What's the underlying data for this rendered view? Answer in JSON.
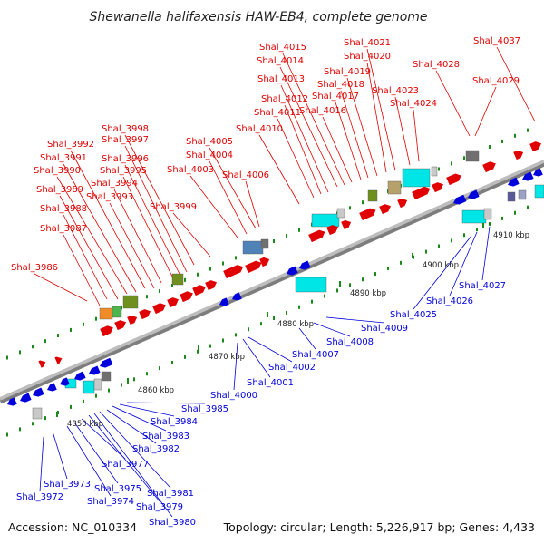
{
  "title": "Shewanella halifaxensis HAW-EB4, complete genome",
  "footer": {
    "accession": "Accession: NC_010334",
    "summary": "Topology: circular; Length: 5,226,917 bp; Genes: 4,433"
  },
  "colors": {
    "forward_gene": "#e00000",
    "reverse_gene": "#0000dd",
    "backbone": "#a0a0a0",
    "tick": "#1a8a1a",
    "cog_cyan": "#00e5e5",
    "cog_steel": "#4f83b8",
    "cog_olive": "#6f8f1f",
    "cog_gray": "#707070",
    "cog_lightgray": "#c8c8c8"
  },
  "scale": {
    "unit": "kbp",
    "ticks": [
      {
        "label": "4850 kbp"
      },
      {
        "label": "4860 kbp"
      },
      {
        "label": "4870 kbp"
      },
      {
        "label": "4880 kbp"
      },
      {
        "label": "4890 kbp"
      },
      {
        "label": "4900 kbp"
      },
      {
        "label": "4910 kbp"
      }
    ]
  },
  "forward_labels": [
    "Shal_3986",
    "Shal_3987",
    "Shal_3988",
    "Shal_3989",
    "Shal_3990",
    "Shal_3991",
    "Shal_3992",
    "Shal_3993",
    "Shal_3994",
    "Shal_3995",
    "Shal_3996",
    "Shal_3997",
    "Shal_3998",
    "Shal_3999",
    "Shal_4003",
    "Shal_4004",
    "Shal_4005",
    "Shal_4006",
    "Shal_4010",
    "Shal_4011",
    "Shal_4012",
    "Shal_4013",
    "Shal_4014",
    "Shal_4015",
    "Shal_4016",
    "Shal_4017",
    "Shal_4018",
    "Shal_4019",
    "Shal_4020",
    "Shal_4021",
    "Shal_4023",
    "Shal_4024",
    "Shal_4028",
    "Shal_4029",
    "Shal_4037"
  ],
  "reverse_labels": [
    "Shal_3972",
    "Shal_3973",
    "Shal_3974",
    "Shal_3975",
    "Shal_3977",
    "Shal_3979",
    "Shal_3980",
    "Shal_3981",
    "Shal_3982",
    "Shal_3983",
    "Shal_3984",
    "Shal_3985",
    "Shal_4000",
    "Shal_4001",
    "Shal_4002",
    "Shal_4007",
    "Shal_4008",
    "Shal_4009",
    "Shal_4025",
    "Shal_4026",
    "Shal_4027"
  ]
}
